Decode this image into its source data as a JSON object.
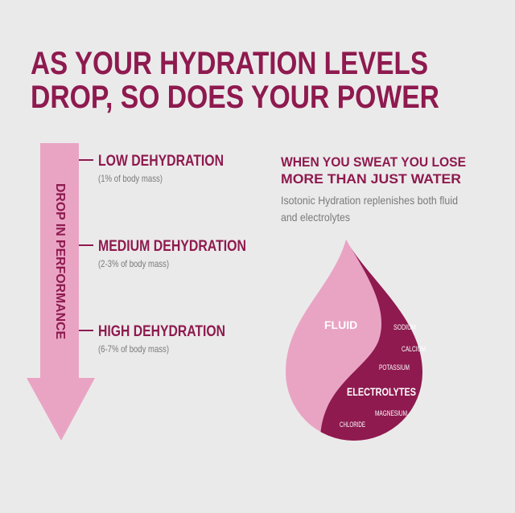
{
  "title": {
    "lines": [
      "AS YOUR HYDRATION LEVELS",
      "DROP, SO DOES YOUR POWER"
    ]
  },
  "arrow": {
    "label": "DROP IN PERFORMANCE"
  },
  "levels": [
    {
      "name": "LOW DEHYDRATION",
      "detail": "(1% of body mass)"
    },
    {
      "name": "MEDIUM DEHYDRATION",
      "detail": "(2-3% of body mass)"
    },
    {
      "name": "HIGH DEHYDRATION",
      "detail": "(6-7% of body mass)"
    }
  ],
  "sweat": {
    "heading": [
      "WHEN YOU SWEAT YOU LOSE",
      "MORE THAN JUST WATER"
    ],
    "text": [
      "Isotonic Hydration replenishes both fluid",
      "and electrolytes"
    ]
  },
  "drop": {
    "fluid": "FLUID",
    "electrolytes": "ELECTROLYTES",
    "minerals": [
      "SODIUM",
      "CALCIUM",
      "POTASSIUM",
      "MAGNESIUM",
      "CHLORIDE"
    ]
  }
}
